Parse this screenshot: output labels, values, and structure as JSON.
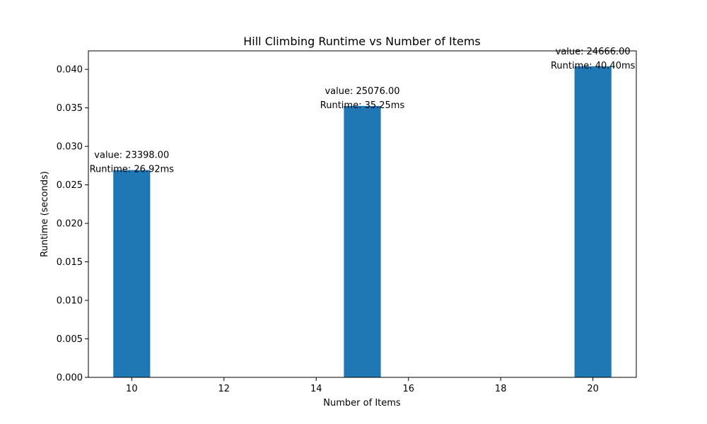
{
  "chart_data": {
    "type": "bar",
    "title": "Hill Climbing Runtime vs Number of Items",
    "xlabel": "Number of Items",
    "ylabel": "Runtime (seconds)",
    "x": [
      10,
      15,
      20
    ],
    "values": [
      0.02692,
      0.03525,
      0.0404
    ],
    "bar_width": 0.8,
    "labels": [
      [
        "value: 23398.00",
        "Runtime: 26.92ms"
      ],
      [
        "value: 25076.00",
        "Runtime: 35.25ms"
      ],
      [
        "value: 24666.00",
        "Runtime: 40.40ms"
      ]
    ],
    "xlim": [
      9.06,
      20.94
    ],
    "ylim": [
      0,
      0.0424
    ],
    "xticks": [
      10,
      12,
      14,
      16,
      18,
      20
    ],
    "xtick_labels": [
      "10",
      "12",
      "14",
      "16",
      "18",
      "20"
    ],
    "yticks": [
      0,
      0.005,
      0.01,
      0.015,
      0.02,
      0.025,
      0.03,
      0.035,
      0.04
    ],
    "ytick_labels": [
      "0.000",
      "0.005",
      "0.010",
      "0.015",
      "0.020",
      "0.025",
      "0.030",
      "0.035",
      "0.040"
    ],
    "grid": false,
    "legend": false,
    "bar_color": "#1f77b4"
  }
}
